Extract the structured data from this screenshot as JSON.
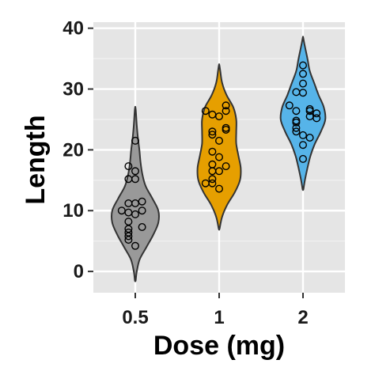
{
  "chart_data": {
    "type": "violin",
    "xlabel": "Dose (mg)",
    "ylabel": "Length",
    "ylim": [
      -3.5,
      41
    ],
    "yticks": [
      0,
      10,
      20,
      30,
      40
    ],
    "grid": true,
    "legend": "none",
    "categories": [
      "0.5",
      "1",
      "2"
    ],
    "colors": {
      "0.5": "#999999",
      "1": "#E69F00",
      "2": "#56B4E9",
      "panel": "#e5e5e5",
      "grid": "#ffffff"
    },
    "violins": [
      {
        "category": "0.5",
        "min": -1.5,
        "max": 27,
        "density": [
          [
            -1.5,
            0.01
          ],
          [
            0,
            0.04
          ],
          [
            2,
            0.12
          ],
          [
            4,
            0.3
          ],
          [
            6,
            0.48
          ],
          [
            8,
            0.62
          ],
          [
            10,
            0.62
          ],
          [
            12,
            0.46
          ],
          [
            14,
            0.28
          ],
          [
            16,
            0.19
          ],
          [
            18,
            0.14
          ],
          [
            20,
            0.11
          ],
          [
            22,
            0.07
          ],
          [
            24,
            0.04
          ],
          [
            26,
            0.02
          ],
          [
            27,
            0.005
          ]
        ],
        "points": [
          4.2,
          5.2,
          5.8,
          6.4,
          7.0,
          7.3,
          8.2,
          9.4,
          9.7,
          10.0,
          10.0,
          11.2,
          11.2,
          11.5,
          15.2,
          15.2,
          16.5,
          17.3,
          21.5
        ]
      },
      {
        "category": "1",
        "min": 7,
        "max": 34,
        "density": [
          [
            7,
            0.01
          ],
          [
            9,
            0.08
          ],
          [
            11,
            0.22
          ],
          [
            13,
            0.42
          ],
          [
            15,
            0.56
          ],
          [
            17,
            0.58
          ],
          [
            19,
            0.52
          ],
          [
            21,
            0.46
          ],
          [
            23,
            0.46
          ],
          [
            25,
            0.46
          ],
          [
            27,
            0.38
          ],
          [
            29,
            0.2
          ],
          [
            31,
            0.08
          ],
          [
            33,
            0.03
          ],
          [
            34,
            0.005
          ]
        ],
        "points": [
          13.6,
          14.5,
          15.2,
          16.5,
          16.5,
          17.3,
          17.6,
          18.8,
          19.7,
          21.5,
          22.5,
          23.0,
          23.3,
          23.6,
          25.5,
          25.8,
          26.4,
          26.4,
          27.3,
          14.5
        ]
      },
      {
        "category": "2",
        "min": 13.5,
        "max": 38.5,
        "density": [
          [
            13.5,
            0.01
          ],
          [
            15,
            0.05
          ],
          [
            17,
            0.12
          ],
          [
            19,
            0.2
          ],
          [
            21,
            0.32
          ],
          [
            23,
            0.48
          ],
          [
            25,
            0.6
          ],
          [
            27,
            0.56
          ],
          [
            29,
            0.42
          ],
          [
            31,
            0.3
          ],
          [
            33,
            0.18
          ],
          [
            35,
            0.12
          ],
          [
            37,
            0.05
          ],
          [
            38.5,
            0.005
          ]
        ],
        "points": [
          18.5,
          20.8,
          22.4,
          23.0,
          23.6,
          24.5,
          24.8,
          25.5,
          26.4,
          26.4,
          26.7,
          27.3,
          29.4,
          29.5,
          30.9,
          32.5,
          33.9,
          26.0,
          25.2,
          22.0
        ]
      }
    ]
  }
}
